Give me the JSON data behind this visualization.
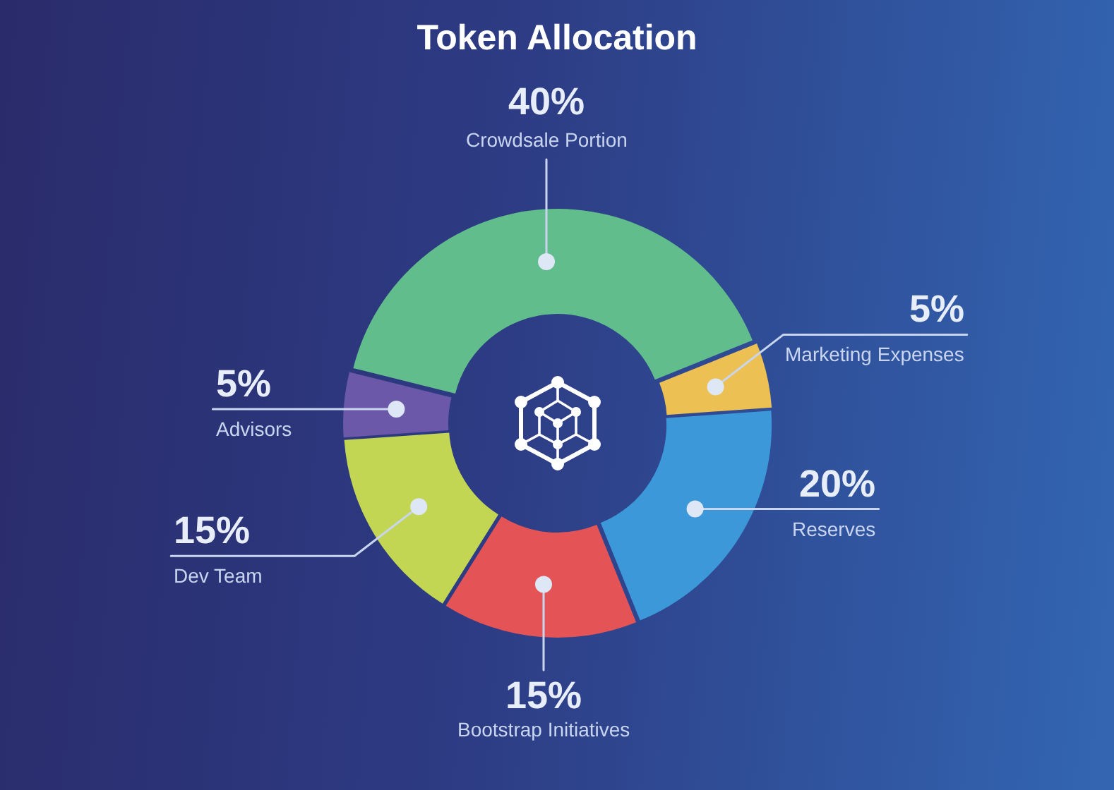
{
  "chart_data": {
    "type": "donut",
    "title": "Token Allocation",
    "categories": [
      "Crowdsale Portion",
      "Marketing Expenses",
      "Reserves",
      "Bootstrap Initiatives",
      "Dev Team",
      "Advisors"
    ],
    "values": [
      40,
      5,
      20,
      15,
      15,
      5
    ],
    "colors": [
      "#62bd8c",
      "#ecc052",
      "#3d98d9",
      "#e45457",
      "#c2d653",
      "#6b58a8"
    ],
    "value_labels": [
      "40%",
      "5%",
      "20%",
      "15%",
      "15%",
      "5%"
    ]
  }
}
